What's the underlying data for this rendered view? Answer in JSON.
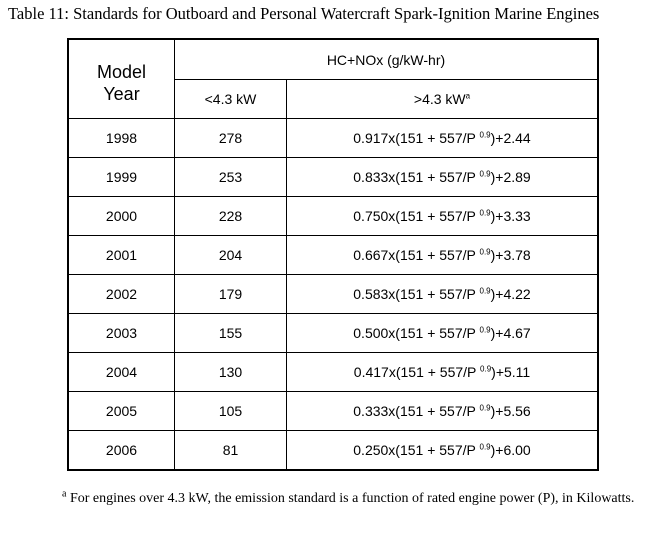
{
  "caption": "Table 11: Standards for Outboard and Personal Watercraft Spark-Ignition Marine Engines",
  "header": {
    "model_line1": "Model",
    "model_line2": "Year",
    "group": "HC+NOx (g/kW-hr)",
    "low": "<4.3 kW",
    "high": ">4.3 kW",
    "high_sup": "a"
  },
  "rows": [
    {
      "year": "1998",
      "low": "278",
      "pre": "0.917x(151 + 557/P ",
      "exp": "0.9",
      "post": ")+2.44"
    },
    {
      "year": "1999",
      "low": "253",
      "pre": "0.833x(151 + 557/P ",
      "exp": "0.9",
      "post": ")+2.89"
    },
    {
      "year": "2000",
      "low": "228",
      "pre": "0.750x(151 + 557/P ",
      "exp": "0.9",
      "post": ")+3.33"
    },
    {
      "year": "2001",
      "low": "204",
      "pre": "0.667x(151 + 557/P ",
      "exp": "0.9",
      "post": ")+3.78"
    },
    {
      "year": "2002",
      "low": "179",
      "pre": "0.583x(151 + 557/P ",
      "exp": "0.9",
      "post": ")+4.22"
    },
    {
      "year": "2003",
      "low": "155",
      "pre": "0.500x(151 + 557/P ",
      "exp": "0.9",
      "post": ")+4.67"
    },
    {
      "year": "2004",
      "low": "130",
      "pre": "0.417x(151 + 557/P ",
      "exp": "0.9",
      "post": ")+5.11"
    },
    {
      "year": "2005",
      "low": "105",
      "pre": "0.333x(151 + 557/P ",
      "exp": "0.9",
      "post": ")+5.56"
    },
    {
      "year": "2006",
      "low": "81",
      "pre": "0.250x(151 + 557/P ",
      "exp": "0.9",
      "post": ")+6.00"
    }
  ],
  "footnote": {
    "mark": "a",
    "text": " For engines over 4.3 kW, the emission standard is a function of rated engine power (P), in Kilowatts."
  }
}
